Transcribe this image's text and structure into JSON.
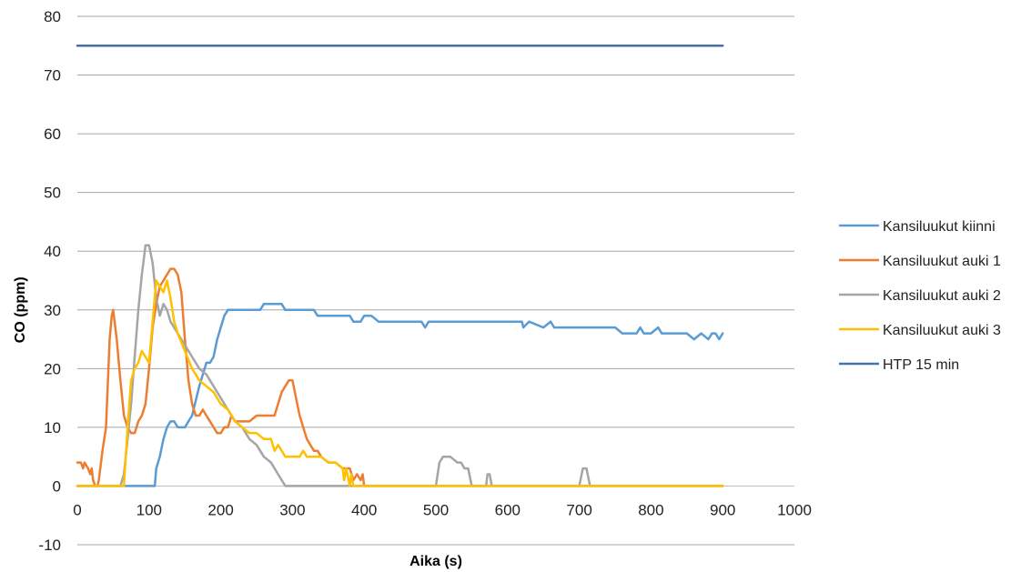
{
  "chart_data": {
    "type": "line",
    "title": "",
    "xlabel": "Aika (s)",
    "ylabel": "CO (ppm)",
    "xlim": [
      0,
      1000
    ],
    "ylim": [
      -10,
      80
    ],
    "xticks": [
      0,
      100,
      200,
      300,
      400,
      500,
      600,
      700,
      800,
      900,
      1000
    ],
    "yticks": [
      -10,
      0,
      10,
      20,
      30,
      40,
      50,
      60,
      70,
      80
    ],
    "grid": "horizontal",
    "legend_position": "right",
    "series": [
      {
        "name": "Kansiluukut kiinni",
        "color": "#5b9bd5",
        "x": [
          0,
          108,
          110,
          115,
          120,
          125,
          130,
          135,
          140,
          150,
          155,
          160,
          170,
          175,
          180,
          185,
          190,
          195,
          200,
          205,
          210,
          220,
          230,
          240,
          250,
          255,
          260,
          270,
          280,
          285,
          290,
          300,
          330,
          335,
          380,
          385,
          395,
          400,
          410,
          420,
          430,
          480,
          485,
          490,
          510,
          600,
          620,
          622,
          630,
          650,
          660,
          665,
          700,
          750,
          760,
          780,
          785,
          790,
          800,
          810,
          815,
          830,
          850,
          860,
          870,
          880,
          885,
          890,
          895,
          900
        ],
        "y": [
          0,
          0,
          3,
          5,
          8,
          10,
          11,
          11,
          10,
          10,
          11,
          12,
          17,
          19,
          21,
          21,
          22,
          25,
          27,
          29,
          30,
          30,
          30,
          30,
          30,
          30,
          31,
          31,
          31,
          31,
          30,
          30,
          30,
          29,
          29,
          28,
          28,
          29,
          29,
          28,
          28,
          28,
          27,
          28,
          28,
          28,
          28,
          27,
          28,
          27,
          28,
          27,
          27,
          27,
          26,
          26,
          27,
          26,
          26,
          27,
          26,
          26,
          26,
          25,
          26,
          25,
          26,
          26,
          25,
          26
        ]
      },
      {
        "name": "Kansiluukut auki 1",
        "color": "#ed7d31",
        "x": [
          0,
          5,
          8,
          10,
          15,
          18,
          20,
          22,
          25,
          28,
          30,
          35,
          40,
          45,
          48,
          50,
          55,
          60,
          65,
          70,
          75,
          80,
          85,
          90,
          95,
          100,
          105,
          110,
          115,
          120,
          125,
          130,
          135,
          140,
          145,
          150,
          155,
          160,
          165,
          170,
          175,
          180,
          185,
          190,
          195,
          200,
          205,
          210,
          215,
          220,
          230,
          240,
          250,
          260,
          270,
          275,
          280,
          285,
          290,
          295,
          300,
          305,
          310,
          315,
          320,
          325,
          330,
          335,
          340,
          350,
          360,
          370,
          380,
          385,
          390,
          395,
          398,
          400,
          410,
          500,
          600,
          700,
          800,
          900
        ],
        "y": [
          4,
          4,
          3,
          4,
          3,
          2,
          3,
          1,
          0,
          0,
          1,
          6,
          10,
          25,
          29,
          30,
          25,
          18,
          12,
          10,
          9,
          9,
          11,
          12,
          14,
          20,
          27,
          31,
          34,
          35,
          36,
          37,
          37,
          36,
          33,
          25,
          18,
          14,
          12,
          12,
          13,
          12,
          11,
          10,
          9,
          9,
          10,
          10,
          12,
          11,
          11,
          11,
          12,
          12,
          12,
          12,
          14,
          16,
          17,
          18,
          18,
          15,
          12,
          10,
          8,
          7,
          6,
          6,
          5,
          4,
          4,
          3,
          3,
          1,
          2,
          1,
          2,
          0,
          0,
          0,
          0,
          0,
          0,
          0
        ]
      },
      {
        "name": "Kansiluukut auki 2",
        "color": "#a5a5a5",
        "x": [
          0,
          60,
          65,
          70,
          75,
          80,
          85,
          90,
          95,
          100,
          105,
          110,
          115,
          120,
          125,
          130,
          140,
          150,
          160,
          170,
          180,
          190,
          200,
          210,
          220,
          230,
          240,
          250,
          260,
          270,
          280,
          285,
          290,
          295,
          300,
          400,
          500,
          505,
          510,
          520,
          530,
          535,
          540,
          545,
          550,
          570,
          572,
          575,
          578,
          580,
          700,
          705,
          710,
          715,
          720,
          800,
          900
        ],
        "y": [
          0,
          0,
          2,
          8,
          14,
          22,
          30,
          36,
          41,
          41,
          38,
          32,
          29,
          31,
          30,
          28,
          26,
          24,
          22,
          20,
          19,
          17,
          15,
          13,
          11,
          10,
          8,
          7,
          5,
          4,
          2,
          1,
          0,
          0,
          0,
          0,
          0,
          4,
          5,
          5,
          4,
          4,
          3,
          3,
          0,
          0,
          2,
          2,
          0,
          0,
          0,
          3,
          3,
          0,
          0,
          0,
          0
        ]
      },
      {
        "name": "Kansiluukut auki 3",
        "color": "#ffc000",
        "x": [
          0,
          65,
          70,
          75,
          80,
          85,
          90,
          95,
          100,
          105,
          110,
          115,
          120,
          125,
          130,
          135,
          140,
          150,
          160,
          170,
          180,
          190,
          200,
          210,
          220,
          230,
          240,
          250,
          260,
          270,
          275,
          280,
          285,
          290,
          300,
          310,
          315,
          320,
          330,
          340,
          350,
          360,
          370,
          372,
          375,
          380,
          382,
          385,
          390,
          400,
          500,
          600,
          700,
          800,
          900
        ],
        "y": [
          0,
          0,
          10,
          18,
          20,
          21,
          23,
          22,
          21,
          28,
          35,
          34,
          33,
          35,
          32,
          28,
          26,
          23,
          20,
          18,
          17,
          16,
          14,
          13,
          11,
          10,
          9,
          9,
          8,
          8,
          6,
          7,
          6,
          5,
          5,
          5,
          6,
          5,
          5,
          5,
          4,
          4,
          3,
          1,
          3,
          0,
          2,
          0,
          0,
          0,
          0,
          0,
          0,
          0,
          0
        ]
      },
      {
        "name": "HTP 15 min",
        "color": "#4472a8",
        "x": [
          0,
          900
        ],
        "y": [
          75,
          75
        ]
      }
    ]
  }
}
